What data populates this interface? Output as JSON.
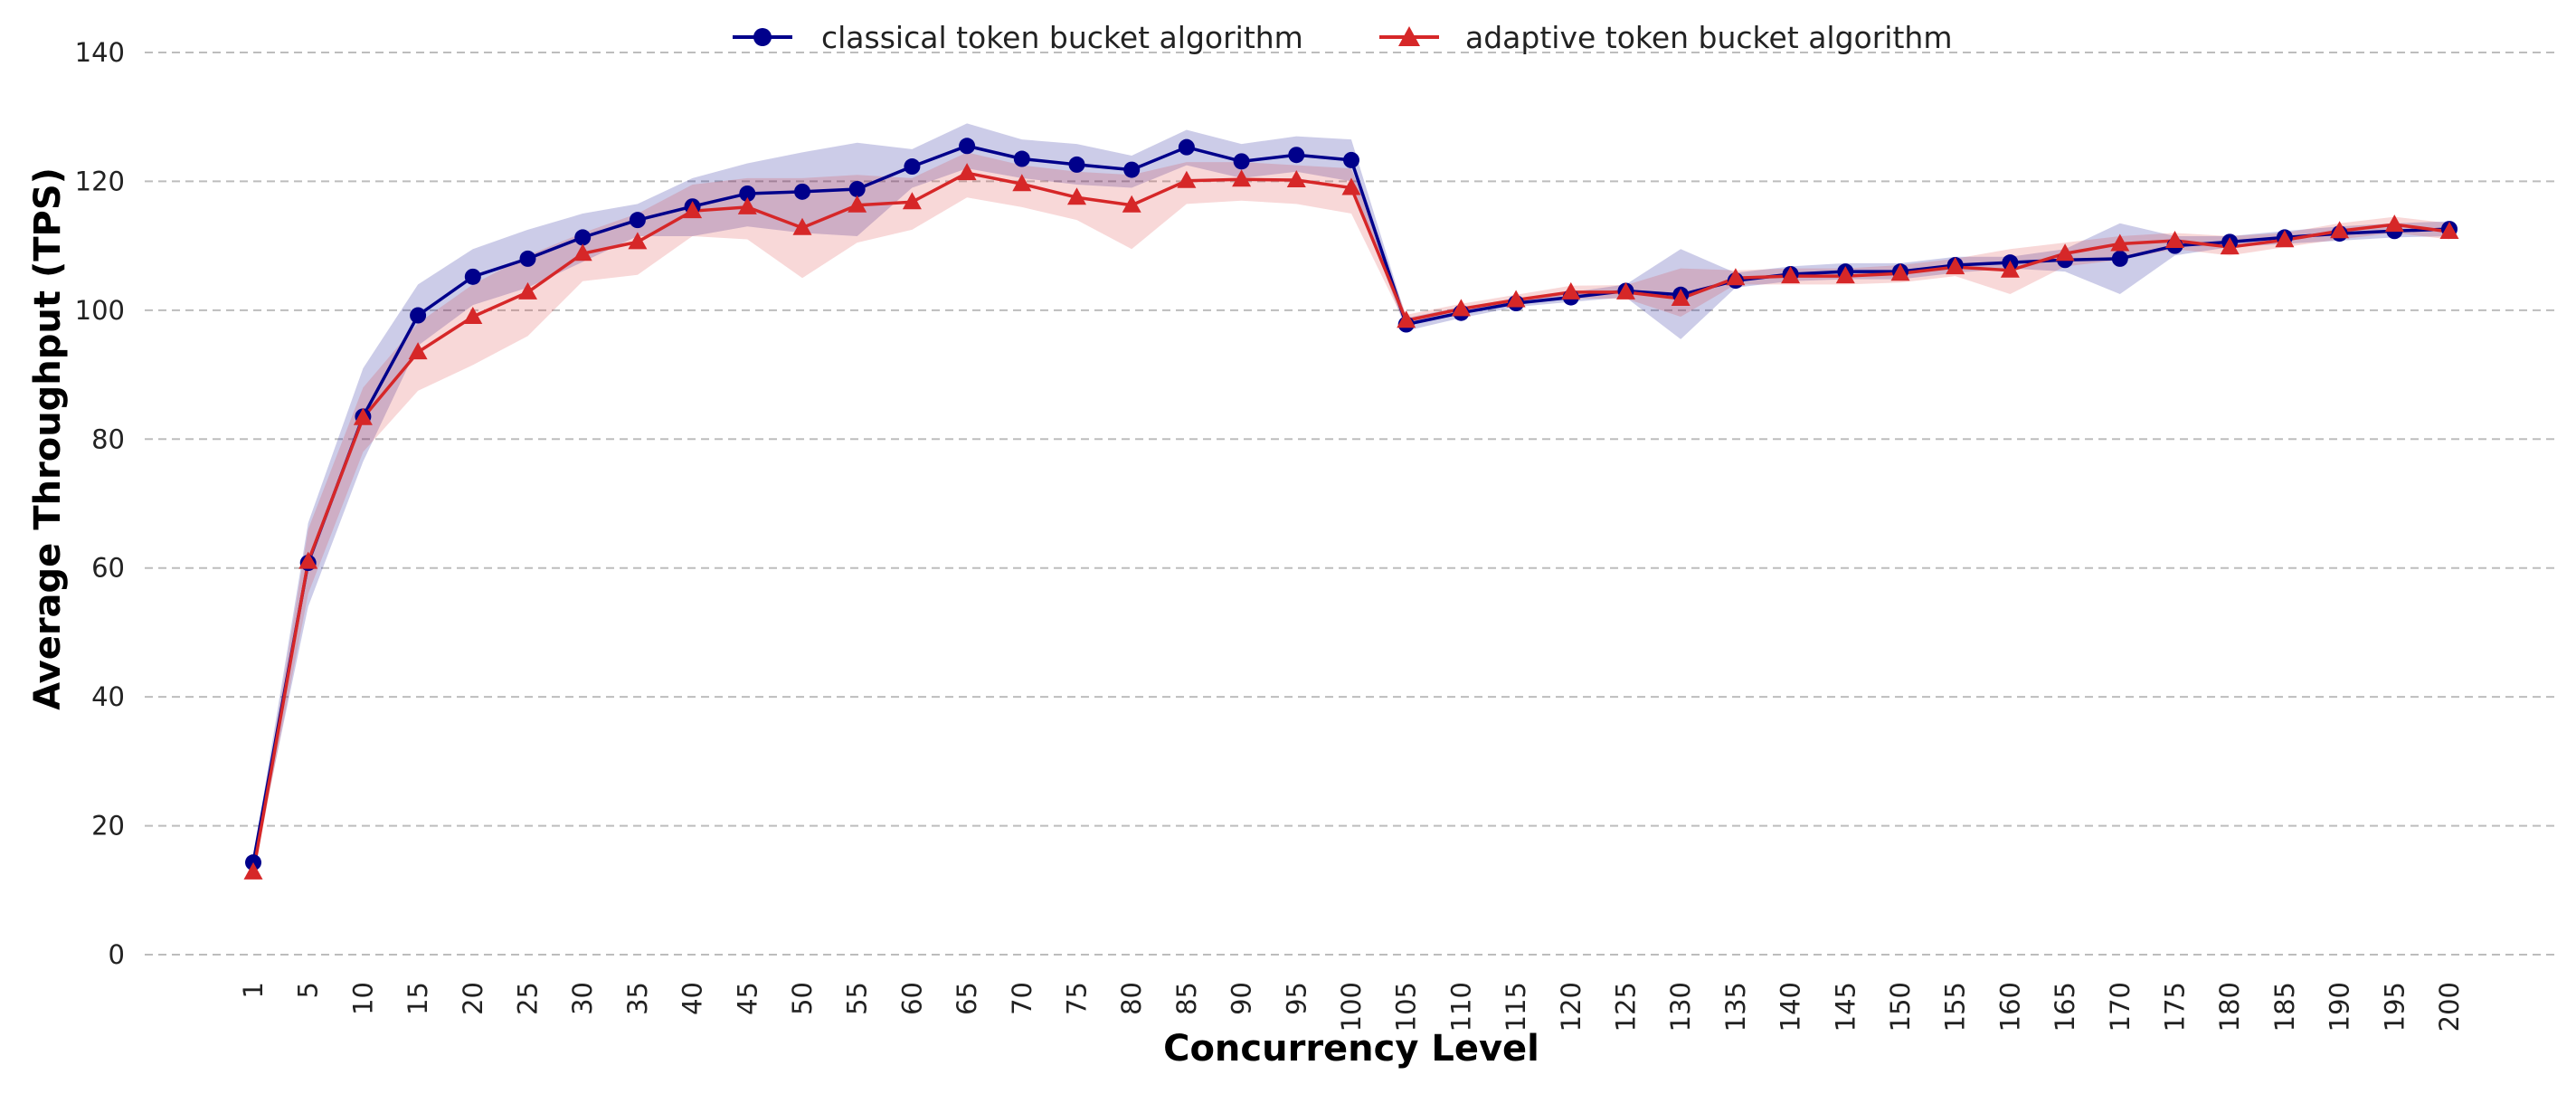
{
  "chart_data": {
    "type": "line",
    "title": "",
    "xlabel": "Concurrency Level",
    "ylabel": "Average Throughput (TPS)",
    "ylim": [
      0,
      140
    ],
    "yticks": [
      "0",
      "20",
      "40",
      "60",
      "80",
      "100",
      "120",
      "140"
    ],
    "grid": "horizontal dashed",
    "legend": "top-center",
    "categories": [
      "1",
      "5",
      "10",
      "15",
      "20",
      "25",
      "30",
      "35",
      "40",
      "45",
      "50",
      "55",
      "60",
      "65",
      "70",
      "75",
      "80",
      "85",
      "90",
      "95",
      "100",
      "105",
      "110",
      "115",
      "120",
      "125",
      "130",
      "135",
      "140",
      "145",
      "150",
      "155",
      "160",
      "165",
      "170",
      "175",
      "180",
      "185",
      "190",
      "195",
      "200"
    ],
    "series": [
      {
        "name": "classical token bucket algorithm",
        "color": "#00008b",
        "marker": "circle",
        "values": [
          14.3,
          60.8,
          83.5,
          99.2,
          105.2,
          108.0,
          111.3,
          114.0,
          116.1,
          118.1,
          118.4,
          118.8,
          122.3,
          125.5,
          123.5,
          122.6,
          121.8,
          125.3,
          123.1,
          124.1,
          123.3,
          97.8,
          99.6,
          101.1,
          102.0,
          103.0,
          102.4,
          104.6,
          105.6,
          106.0,
          106.0,
          107.0,
          107.4,
          107.8,
          108.0,
          110.0,
          110.6,
          111.3,
          111.9,
          112.3,
          112.6
        ],
        "lower": [
          13.5,
          54.0,
          76.5,
          94.5,
          100.8,
          103.5,
          107.5,
          111.5,
          111.5,
          113.0,
          112.0,
          111.5,
          119.0,
          122.0,
          120.5,
          119.5,
          119.0,
          122.5,
          120.5,
          121.5,
          120.0,
          96.8,
          98.8,
          100.5,
          101.3,
          102.0,
          95.5,
          103.5,
          104.5,
          104.8,
          104.8,
          105.8,
          106.5,
          106.0,
          102.5,
          108.5,
          109.8,
          110.3,
          110.8,
          111.3,
          111.5
        ],
        "upper": [
          15.0,
          67.0,
          91.0,
          104.0,
          109.5,
          112.5,
          115.0,
          116.5,
          120.5,
          122.8,
          124.5,
          126.0,
          125.0,
          129.0,
          126.5,
          125.8,
          124.0,
          128.0,
          125.8,
          127.0,
          126.5,
          98.8,
          100.5,
          101.8,
          102.8,
          104.0,
          109.5,
          105.8,
          106.8,
          107.3,
          107.3,
          108.3,
          108.3,
          109.5,
          113.5,
          111.5,
          111.5,
          112.3,
          113.0,
          113.5,
          113.8
        ]
      },
      {
        "name": "adaptive token bucket algorithm",
        "color": "#d62728",
        "marker": "triangle",
        "values": [
          12.8,
          61.0,
          83.3,
          93.5,
          99.0,
          102.8,
          108.8,
          110.6,
          115.4,
          116.0,
          112.8,
          116.3,
          116.8,
          121.3,
          119.6,
          117.5,
          116.3,
          120.1,
          120.3,
          120.2,
          119.0,
          98.4,
          100.2,
          101.6,
          102.8,
          102.8,
          101.8,
          105.0,
          105.3,
          105.3,
          105.7,
          106.7,
          106.2,
          108.8,
          110.3,
          110.8,
          109.8,
          110.9,
          112.3,
          113.3,
          112.2
        ],
        "lower": [
          12.0,
          56.0,
          78.0,
          87.5,
          91.5,
          96.0,
          104.5,
          105.5,
          111.5,
          111.0,
          105.0,
          110.5,
          112.5,
          117.5,
          116.0,
          114.0,
          109.5,
          116.5,
          117.0,
          116.5,
          115.0,
          97.6,
          99.4,
          100.8,
          101.8,
          101.8,
          99.0,
          104.0,
          104.0,
          104.0,
          104.3,
          105.3,
          102.5,
          106.8,
          107.8,
          109.5,
          108.5,
          109.8,
          111.0,
          112.0,
          111.0
        ],
        "upper": [
          13.5,
          66.0,
          88.0,
          98.0,
          104.0,
          108.5,
          112.0,
          115.0,
          119.5,
          120.5,
          120.5,
          121.0,
          120.5,
          124.5,
          122.5,
          121.5,
          121.0,
          123.0,
          123.0,
          122.5,
          122.0,
          99.3,
          101.0,
          102.4,
          103.8,
          103.9,
          106.5,
          106.2,
          106.5,
          106.5,
          107.0,
          108.0,
          109.5,
          110.5,
          111.5,
          112.0,
          111.5,
          112.0,
          113.5,
          114.5,
          113.5
        ]
      }
    ]
  }
}
